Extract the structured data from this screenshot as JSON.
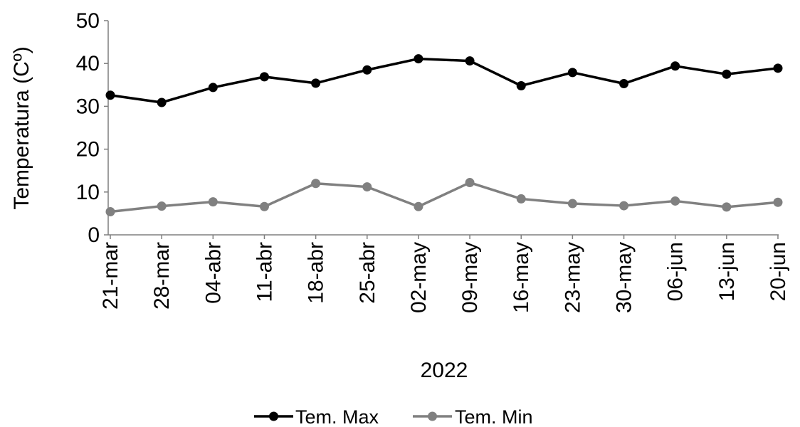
{
  "chart_data": {
    "type": "line",
    "title": "",
    "xlabel": "2022",
    "ylabel": "Temperatura (Cº)",
    "ylim": [
      0,
      50
    ],
    "yticks": [
      0,
      10,
      20,
      30,
      40,
      50
    ],
    "grid": false,
    "legend_position": "bottom",
    "categories": [
      "21-mar",
      "28-mar",
      "04-abr",
      "11-abr",
      "18-abr",
      "25-abr",
      "02-may",
      "09-may",
      "16-may",
      "23-may",
      "30-may",
      "06-jun",
      "13-jun",
      "20-jun"
    ],
    "series": [
      {
        "name": "Tem. Max",
        "color": "#000000",
        "values": [
          32.6,
          30.9,
          34.4,
          36.9,
          35.4,
          38.5,
          41.1,
          40.6,
          34.8,
          37.9,
          35.3,
          39.4,
          37.5,
          38.9
        ]
      },
      {
        "name": "Tem. Min",
        "color": "#808080",
        "values": [
          5.4,
          6.7,
          7.7,
          6.6,
          12.0,
          11.2,
          6.6,
          12.2,
          8.4,
          7.3,
          6.8,
          7.9,
          6.5,
          7.6
        ]
      }
    ]
  }
}
